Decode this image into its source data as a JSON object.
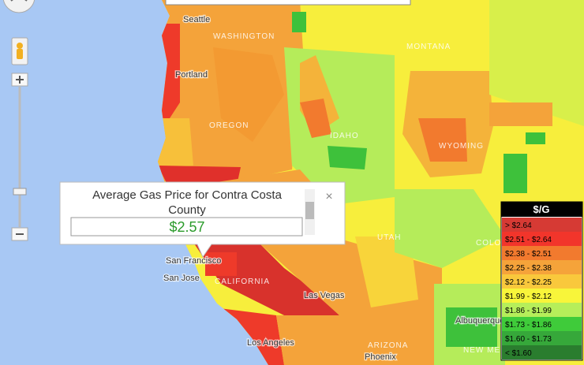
{
  "map_labels": [
    "Seattle",
    "WASHINGTON",
    "MONTANA",
    "Portland",
    "OREGON",
    "IDAHO",
    "WYOMING",
    "UTAH",
    "COLO",
    "San Francisco",
    "San Jose",
    "CALIFORNIA",
    "Las Vegas",
    "Albuquerque",
    "NEW ME",
    "Los Angeles",
    "ARIZONA",
    "Phoenix"
  ],
  "popup": {
    "title": "Average Gas Price for Contra Costa County",
    "value": "$2.57"
  },
  "legend": {
    "title": "$/G",
    "items": [
      {
        "label": "> $2.64",
        "color": "#d63a34"
      },
      {
        "label": "$2.51 - $2.64",
        "color": "#f2352b"
      },
      {
        "label": "$2.38 - $2.51",
        "color": "#f27a2e"
      },
      {
        "label": "$2.25 - $2.38",
        "color": "#f5a33a"
      },
      {
        "label": "$2.12 - $2.25",
        "color": "#f9c83c"
      },
      {
        "label": "$1.99 - $2.12",
        "color": "#f8f53a"
      },
      {
        "label": "$1.86 - $1.99",
        "color": "#b6ee5a"
      },
      {
        "label": "$1.73 - $1.86",
        "color": "#3fcb3a"
      },
      {
        "label": "$1.60 - $1.73",
        "color": "#36a83a"
      },
      {
        "label": "< $1.60",
        "color": "#2a7d2e"
      }
    ]
  }
}
